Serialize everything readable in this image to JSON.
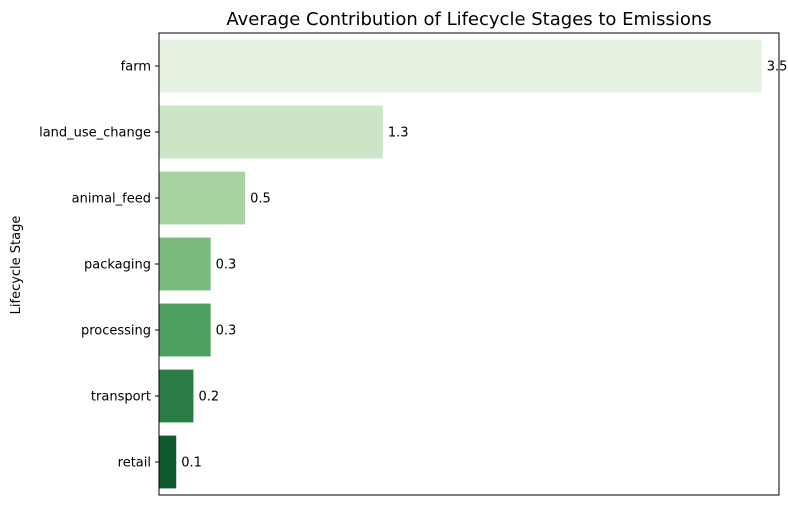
{
  "chart_data": {
    "type": "bar",
    "orientation": "horizontal",
    "title": "Average Contribution of Lifecycle Stages to Emissions",
    "xlabel": "",
    "ylabel": "Lifecycle Stage",
    "categories": [
      "farm",
      "land_use_change",
      "animal_feed",
      "packaging",
      "processing",
      "transport",
      "retail"
    ],
    "values": [
      3.5,
      1.3,
      0.5,
      0.3,
      0.3,
      0.2,
      0.1
    ],
    "value_labels": [
      "3.5",
      "1.3",
      "0.5",
      "0.3",
      "0.3",
      "0.2",
      "0.1"
    ],
    "colors": [
      "#e5f2e1",
      "#cce5c6",
      "#a8d3a0",
      "#7aba7c",
      "#4b9f60",
      "#2d7d47",
      "#0f5a2c"
    ],
    "xlim": [
      0,
      3.6
    ],
    "x_ticks_visible": false,
    "grid": false,
    "legend": "none"
  }
}
